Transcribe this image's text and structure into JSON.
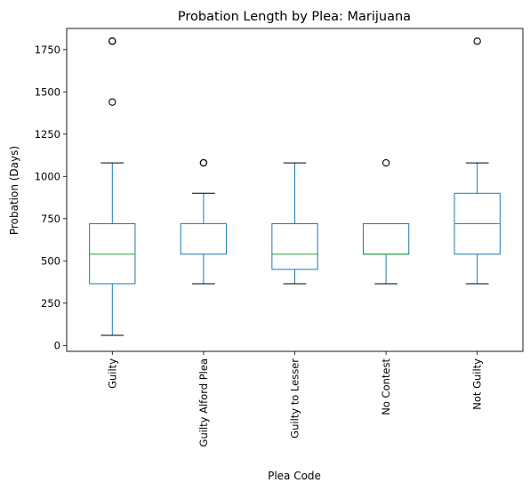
{
  "chart_data": {
    "type": "box",
    "title": "Probation Length by Plea: Marijuana",
    "xlabel": "Plea Code",
    "ylabel": "Probation (Days)",
    "ylim": [
      -35,
      1875
    ],
    "yticks": [
      0,
      250,
      500,
      750,
      1000,
      1250,
      1500,
      1750
    ],
    "grid": false,
    "categories": [
      "Guilty",
      "Guilty Alford Plea",
      "Guilty to Lesser",
      "No Contest",
      "Not Guilty"
    ],
    "boxes": [
      {
        "whisker_low": 60,
        "q1": 365,
        "median": 540,
        "q3": 720,
        "whisker_high": 1080,
        "outliers": [
          1440,
          1800,
          1800
        ]
      },
      {
        "whisker_low": 365,
        "q1": 540,
        "median": 720,
        "q3": 720,
        "whisker_high": 900,
        "outliers": [
          1080,
          1080
        ]
      },
      {
        "whisker_low": 365,
        "q1": 450,
        "median": 540,
        "q3": 720,
        "whisker_high": 1080,
        "outliers": []
      },
      {
        "whisker_low": 365,
        "q1": 540,
        "median": 540,
        "q3": 720,
        "whisker_high": 720,
        "outliers": [
          1080
        ]
      },
      {
        "whisker_low": 365,
        "q1": 540,
        "median": 720,
        "q3": 900,
        "whisker_high": 1080,
        "outliers": [
          1800
        ]
      }
    ],
    "colors": {
      "box": "#1f77b4",
      "median": "#2ca02c",
      "whisker": "#000000",
      "outlier": "#000000"
    }
  }
}
